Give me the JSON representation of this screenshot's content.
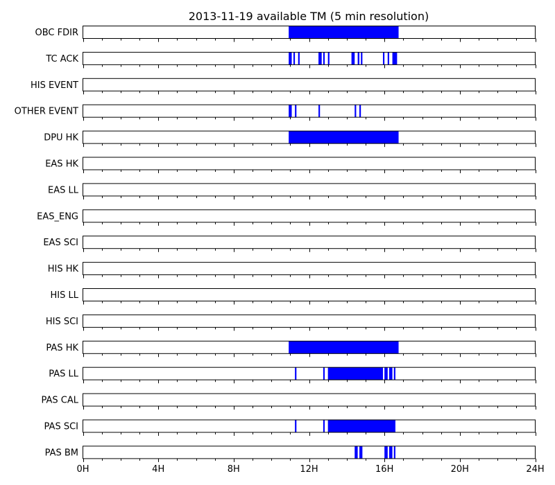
{
  "chart_data": {
    "type": "timeline",
    "title": "2013-11-19 available TM (5 min resolution)",
    "bar_color": "#0000ff",
    "x_unit": "hours",
    "xlim": [
      0,
      24
    ],
    "x_major_ticks": [
      0,
      4,
      8,
      12,
      16,
      20,
      24
    ],
    "x_tick_labels": [
      "0H",
      "4H",
      "8H",
      "12H",
      "16H",
      "20H",
      "24H"
    ],
    "x_minor_tick_step": 1,
    "rows": [
      {
        "name": "OBC FDIR",
        "intervals": [
          [
            10.92,
            16.75
          ]
        ]
      },
      {
        "name": "TC ACK",
        "intervals": [
          [
            10.92,
            11.08
          ],
          [
            11.17,
            11.25
          ],
          [
            11.42,
            11.5
          ],
          [
            12.5,
            12.67
          ],
          [
            12.75,
            12.83
          ],
          [
            13.0,
            13.08
          ],
          [
            14.25,
            14.42
          ],
          [
            14.58,
            14.67
          ],
          [
            14.75,
            14.83
          ],
          [
            15.92,
            16.0
          ],
          [
            16.17,
            16.25
          ],
          [
            16.42,
            16.67
          ]
        ]
      },
      {
        "name": "HIS EVENT",
        "intervals": []
      },
      {
        "name": "OTHER EVENT",
        "intervals": [
          [
            10.92,
            11.08
          ],
          [
            11.25,
            11.33
          ],
          [
            12.5,
            12.58
          ],
          [
            14.42,
            14.5
          ],
          [
            14.67,
            14.75
          ]
        ]
      },
      {
        "name": "DPU HK",
        "intervals": [
          [
            10.92,
            16.75
          ]
        ]
      },
      {
        "name": "EAS HK",
        "intervals": []
      },
      {
        "name": "EAS LL",
        "intervals": []
      },
      {
        "name": "EAS_ENG",
        "intervals": []
      },
      {
        "name": "EAS SCI",
        "intervals": []
      },
      {
        "name": "HIS HK",
        "intervals": []
      },
      {
        "name": "HIS LL",
        "intervals": []
      },
      {
        "name": "HIS SCI",
        "intervals": []
      },
      {
        "name": "PAS HK",
        "intervals": [
          [
            10.92,
            16.75
          ]
        ]
      },
      {
        "name": "PAS LL",
        "intervals": [
          [
            11.25,
            11.33
          ],
          [
            12.75,
            12.83
          ],
          [
            13.0,
            15.92
          ],
          [
            16.0,
            16.17
          ],
          [
            16.25,
            16.42
          ],
          [
            16.5,
            16.58
          ]
        ]
      },
      {
        "name": "PAS CAL",
        "intervals": []
      },
      {
        "name": "PAS SCI",
        "intervals": [
          [
            11.25,
            11.33
          ],
          [
            12.75,
            12.83
          ],
          [
            13.0,
            16.58
          ]
        ]
      },
      {
        "name": "PAS BM",
        "intervals": [
          [
            14.42,
            14.58
          ],
          [
            14.67,
            14.83
          ],
          [
            16.0,
            16.17
          ],
          [
            16.25,
            16.42
          ],
          [
            16.5,
            16.58
          ]
        ]
      }
    ]
  }
}
